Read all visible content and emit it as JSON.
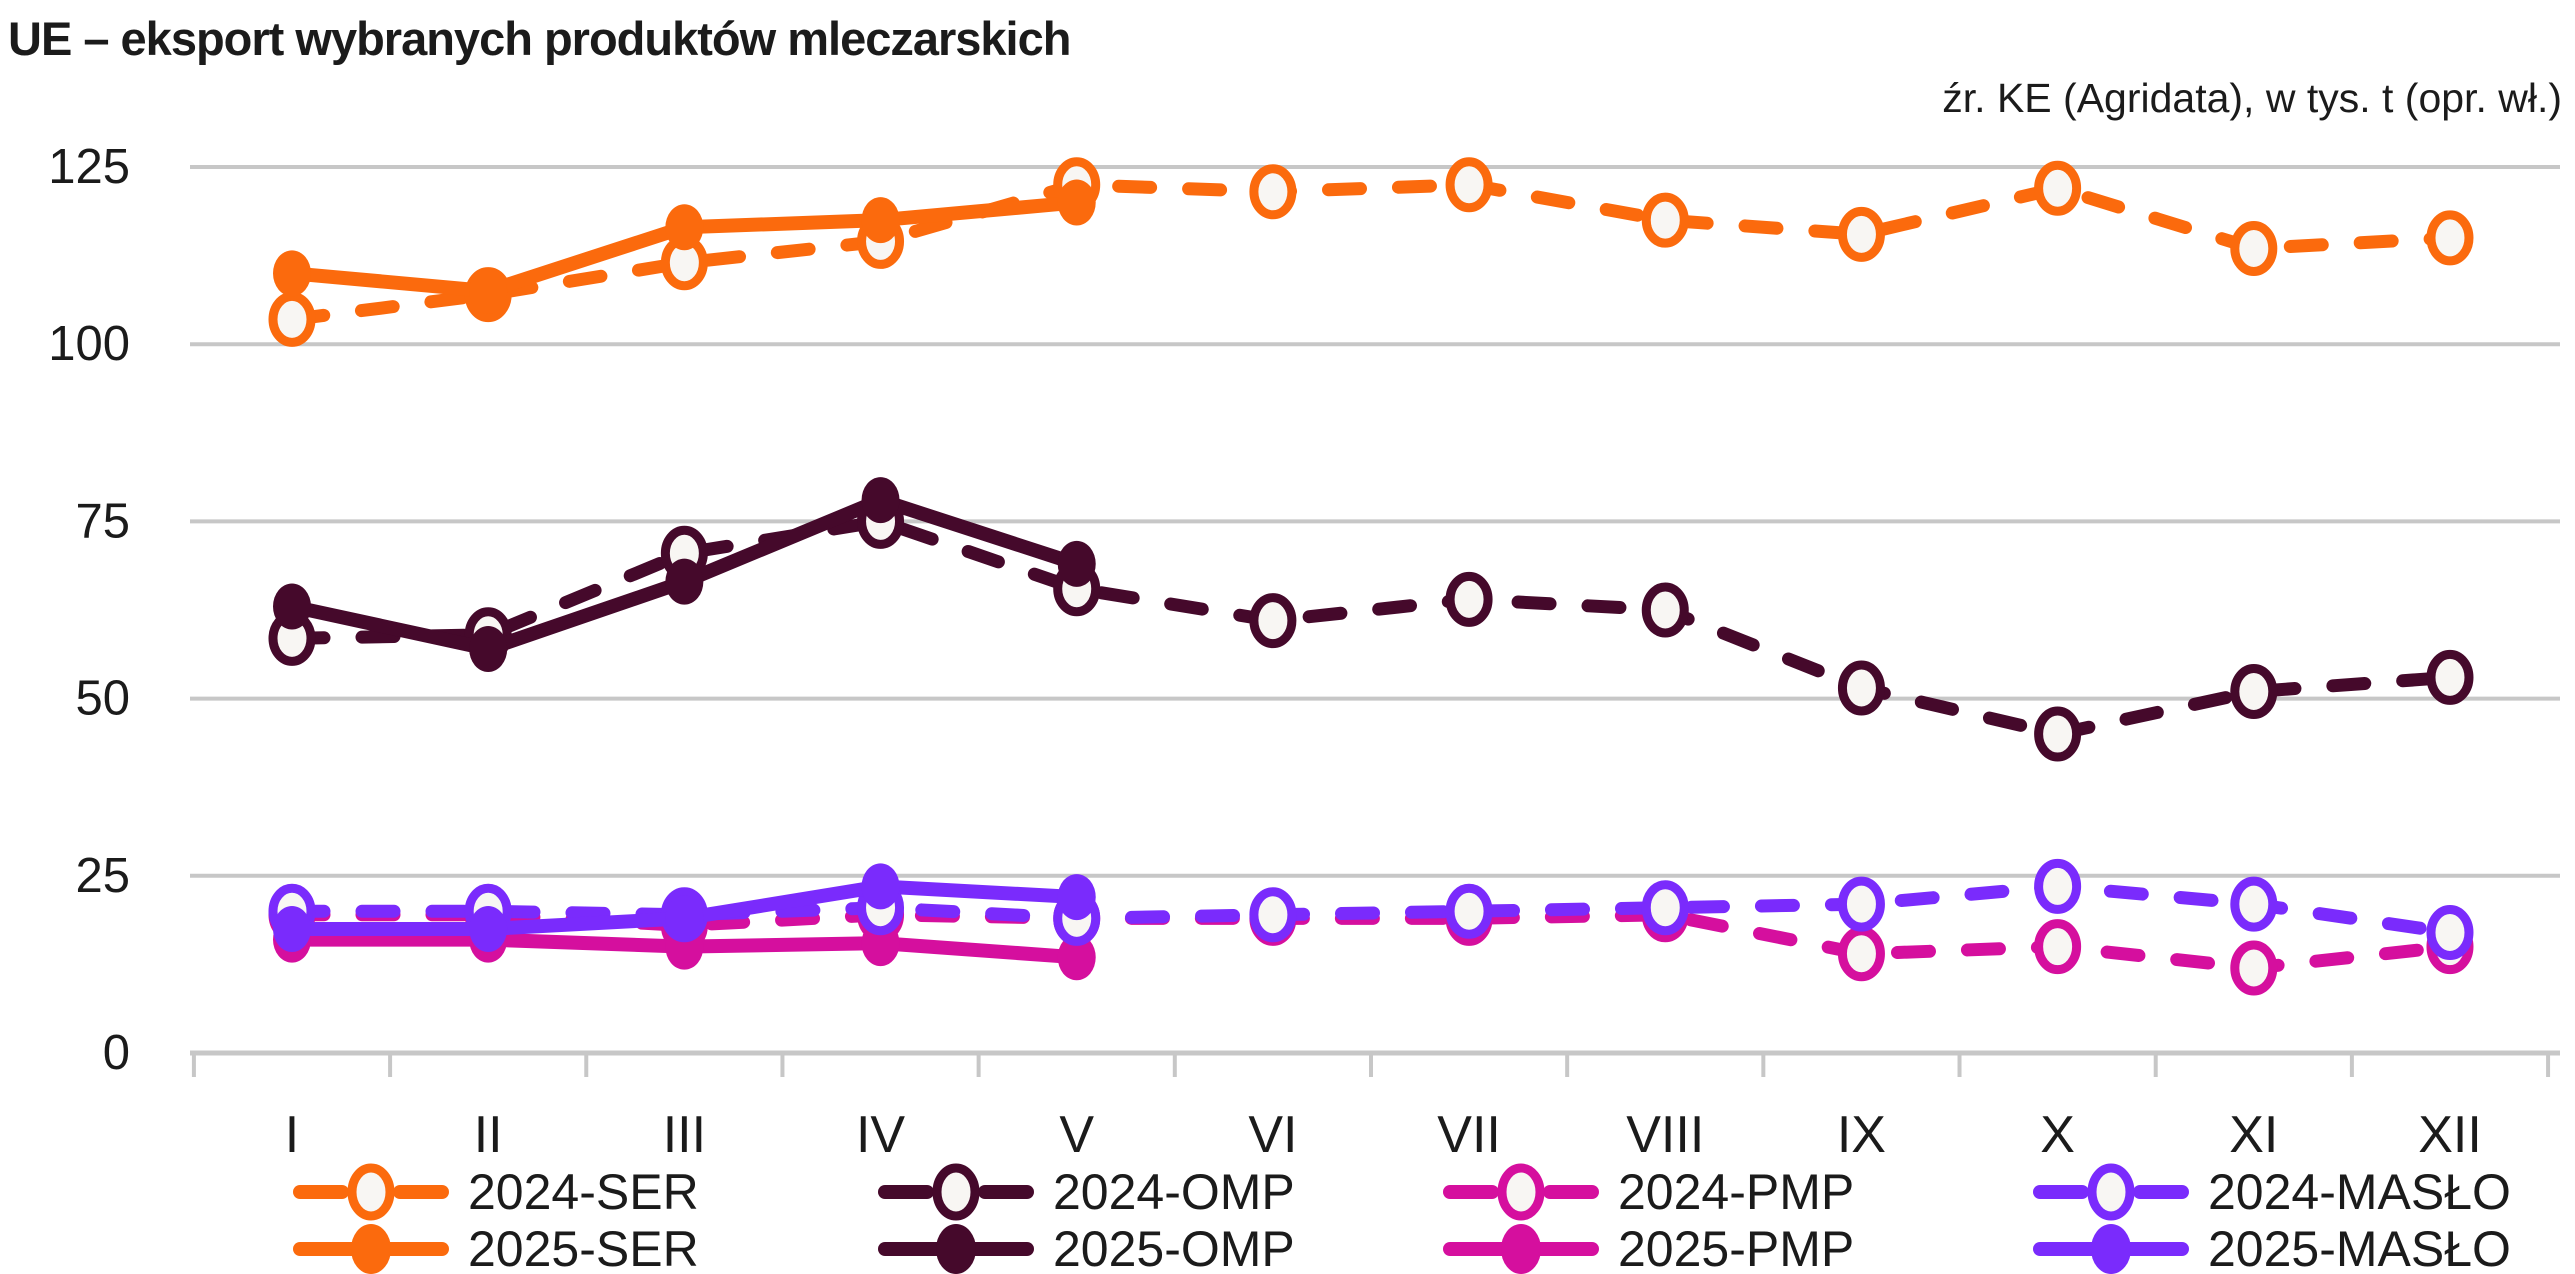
{
  "header": {
    "title": "UE – eksport wybranych produktów mleczarskich",
    "source_note": "źr. KE (Agridata), w tys. t (opr. wł.)"
  },
  "chart_data": {
    "type": "line",
    "title": "UE – eksport wybranych produktów mleczarskich",
    "source_note": "źr. KE (Agridata), w tys. t (opr. wł.)",
    "unit": "tys. t",
    "x_categories": [
      "I",
      "II",
      "III",
      "IV",
      "V",
      "VI",
      "VII",
      "VIII",
      "IX",
      "X",
      "XI",
      "XII"
    ],
    "ylim": [
      0,
      125
    ],
    "yticks": [
      0,
      25,
      50,
      75,
      100,
      125
    ],
    "grid": "horizontal",
    "legend_position": "bottom",
    "series": [
      {
        "name": "2024-SER",
        "color": "#fb6a0d",
        "line_style": "dashed",
        "marker": "open",
        "values": [
          103.5,
          107,
          111.5,
          114.5,
          122.5,
          121.5,
          122.5,
          117.5,
          115.5,
          122,
          113.5,
          115
        ]
      },
      {
        "name": "2025-SER",
        "color": "#fb6a0d",
        "line_style": "solid",
        "marker": "filled",
        "values": [
          110,
          107.5,
          116.5,
          117.5,
          120,
          null,
          null,
          null,
          null,
          null,
          null,
          null
        ]
      },
      {
        "name": "2024-OMP",
        "color": "#45092b",
        "line_style": "dashed",
        "marker": "open",
        "values": [
          58.5,
          59,
          70.5,
          75,
          65.5,
          61,
          64,
          62.5,
          51.5,
          45,
          51,
          53
        ]
      },
      {
        "name": "2025-OMP",
        "color": "#45092b",
        "line_style": "solid",
        "marker": "filled",
        "values": [
          63,
          57,
          66.5,
          78,
          69,
          null,
          null,
          null,
          null,
          null,
          null,
          null
        ]
      },
      {
        "name": "2024-PMP",
        "color": "#d50f9e",
        "line_style": "dashed",
        "marker": "open",
        "values": [
          19.5,
          19.5,
          18,
          19.5,
          19,
          19,
          19,
          19.5,
          14,
          15,
          12,
          15
        ]
      },
      {
        "name": "2025-PMP",
        "color": "#d50f9e",
        "line_style": "solid",
        "marker": "filled",
        "values": [
          16,
          16,
          15,
          15.5,
          13.5,
          null,
          null,
          null,
          null,
          null,
          null,
          null
        ]
      },
      {
        "name": "2024-MASŁO",
        "color": "#7a2bfc",
        "line_style": "dashed",
        "marker": "open",
        "values": [
          20,
          20,
          19.5,
          20.5,
          19,
          19.5,
          20,
          20.5,
          21,
          23.5,
          21,
          17
        ]
      },
      {
        "name": "2025-MASŁO",
        "color": "#7a2bfc",
        "line_style": "solid",
        "marker": "filled",
        "values": [
          17.5,
          17.5,
          19,
          23.5,
          22,
          null,
          null,
          null,
          null,
          null,
          null,
          null
        ]
      }
    ]
  },
  "legend": {
    "columns": [
      [
        "2024-SER",
        "2025-SER"
      ],
      [
        "2024-OMP",
        "2025-OMP"
      ],
      [
        "2024-PMP",
        "2025-PMP"
      ],
      [
        "2024-MASŁO",
        "2025-MASŁO"
      ]
    ]
  },
  "colors": {
    "background": "#ffffff",
    "grid": "#c7c7c7",
    "axis": "#c7c7c7",
    "text": "#1b1b1b",
    "marker_open_fill": "#f8f6f3",
    "ser": "#fb6a0d",
    "omp": "#45092b",
    "pmp": "#d50f9e",
    "maslo": "#7a2bfc"
  }
}
